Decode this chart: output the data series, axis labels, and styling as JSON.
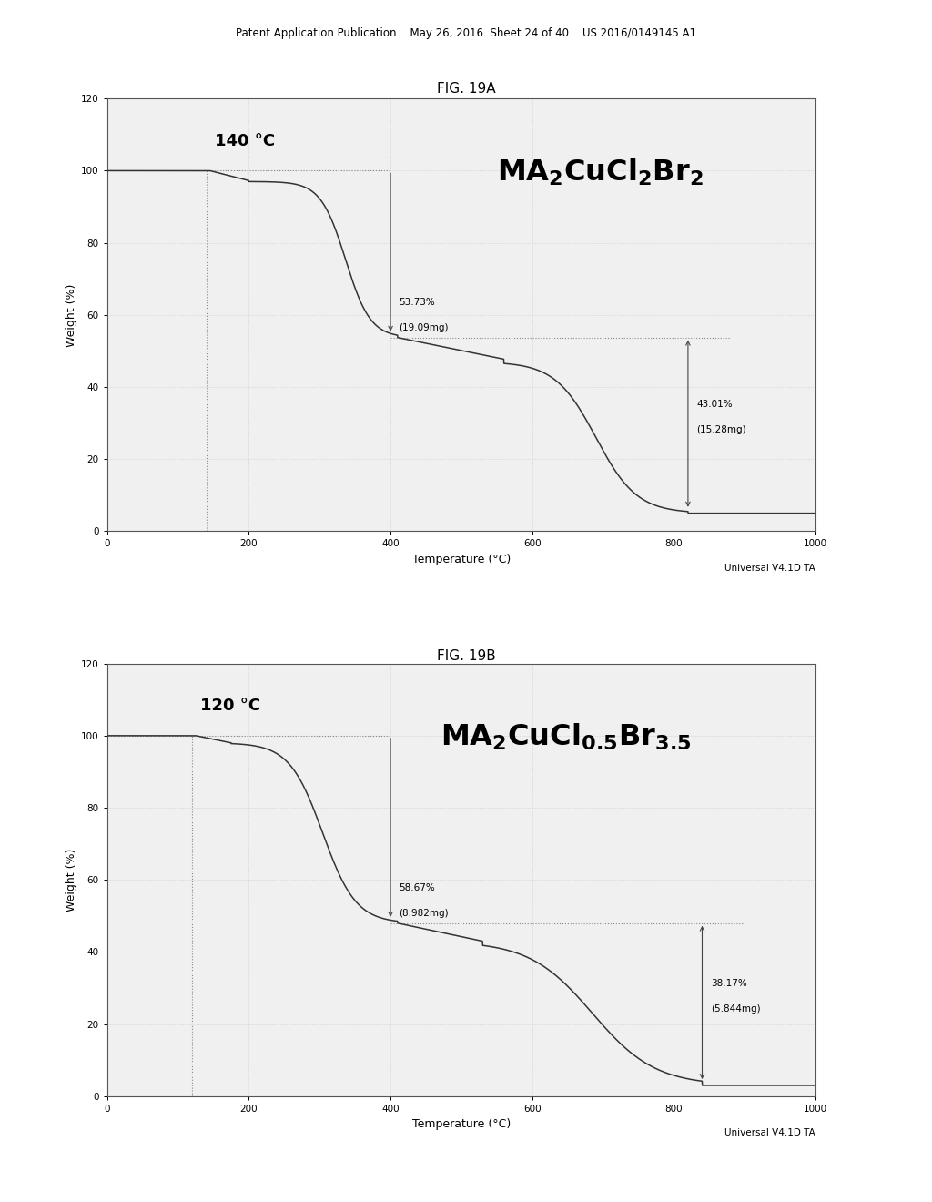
{
  "page_header": "Patent Application Publication    May 26, 2016  Sheet 24 of 40    US 2016/0149145 A1",
  "fig_a_title": "FIG. 19A",
  "fig_b_title": "FIG. 19B",
  "fig_a": {
    "temp_label": "140 °C",
    "temp_line_x": 140,
    "plateau1_y": 100,
    "plateau2_y": 53.73,
    "plateau2_x": 400,
    "plateau3_x": 820,
    "plateau3_y": 5,
    "annotation1_pct": "53.73%",
    "annotation1_mg": "(19.09mg)",
    "annotation2_pct": "43.01%",
    "annotation2_mg": "(15.28mg)",
    "xlabel": "Temperature (°C)",
    "ylabel": "Weight (%)",
    "universal": "Universal V4.1D TA",
    "xlim": [
      0,
      1000
    ],
    "ylim": [
      0,
      120
    ],
    "xticks": [
      0,
      200,
      400,
      600,
      800,
      1000
    ],
    "yticks": [
      0,
      20,
      40,
      60,
      80,
      100,
      120
    ]
  },
  "fig_b": {
    "temp_label": "120 °C",
    "temp_line_x": 120,
    "plateau1_y": 100,
    "plateau2_y": 48.0,
    "plateau2_x": 400,
    "plateau3_x": 840,
    "plateau3_y": 3,
    "annotation1_pct": "58.67%",
    "annotation1_mg": "(8.982mg)",
    "annotation2_pct": "38.17%",
    "annotation2_mg": "(5.844mg)",
    "xlabel": "Temperature (°C)",
    "ylabel": "Weight (%)",
    "universal": "Universal V4.1D TA",
    "xlim": [
      0,
      1000
    ],
    "ylim": [
      0,
      120
    ],
    "xticks": [
      0,
      200,
      400,
      600,
      800,
      1000
    ],
    "yticks": [
      0,
      20,
      40,
      60,
      80,
      100,
      120
    ]
  },
  "bg_color": "#ffffff",
  "line_color": "#333333",
  "dotted_color": "#888888",
  "grid_color": "#bbbbbb"
}
